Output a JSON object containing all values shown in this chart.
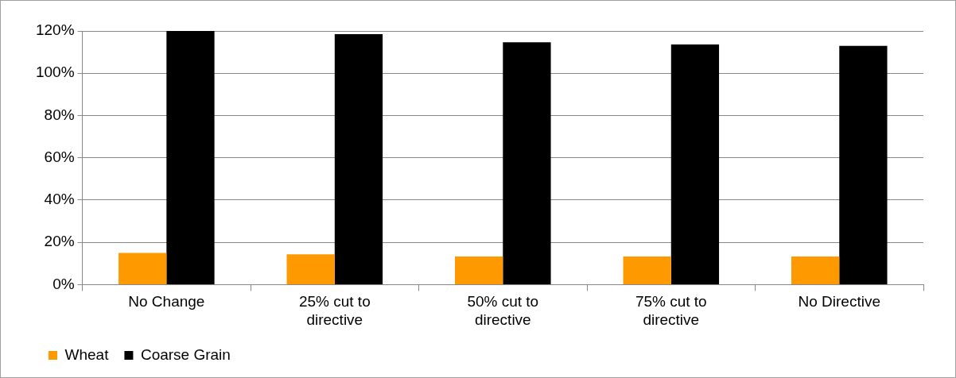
{
  "chart_data": {
    "type": "bar",
    "categories": [
      "No Change",
      "25% cut to directive",
      "50% cut to directive",
      "75% cut to directive",
      "No Directive"
    ],
    "series": [
      {
        "name": "Wheat",
        "color": "#ff9900",
        "values": [
          15,
          14.3,
          13.3,
          13.3,
          13.3
        ]
      },
      {
        "name": "Coarse Grain",
        "color": "#000000",
        "values": [
          120,
          118.5,
          114.6,
          113.6,
          113
        ]
      }
    ],
    "ylim": [
      0,
      120
    ],
    "yticks": [
      {
        "value": 0,
        "label": "0%"
      },
      {
        "value": 20,
        "label": "20%"
      },
      {
        "value": 40,
        "label": "40%"
      },
      {
        "value": 60,
        "label": "60%"
      },
      {
        "value": 80,
        "label": "80%"
      },
      {
        "value": 100,
        "label": "100%"
      },
      {
        "value": 120,
        "label": "120%"
      }
    ],
    "grid": "y",
    "legend": "bottom left"
  }
}
